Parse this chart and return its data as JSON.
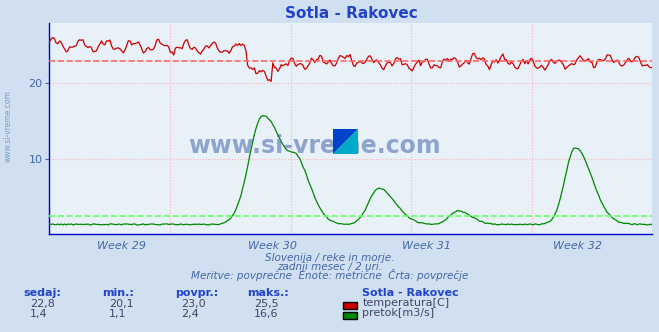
{
  "title": "Sotla - Rakovec",
  "background_color": "#d0e0f0",
  "plot_background": "#e8f0f8",
  "grid_color": "#ffb0b0",
  "x_labels": [
    "Week 29",
    "Week 30",
    "Week 31",
    "Week 32"
  ],
  "y_ticks": [
    10,
    20
  ],
  "ylim_min": 0,
  "ylim_max": 28,
  "temp_avg": 23.0,
  "flow_avg": 2.4,
  "subtitle1": "Slovenija / reke in morje.",
  "subtitle2": "zadnji mesec / 2 uri.",
  "subtitle3": "Meritve: povprečne  Enote: metrične  Črta: povprečje",
  "legend_title": "Sotla - Rakovec",
  "legend_temp": "temperatura[C]",
  "legend_flow": "pretok[m3/s]",
  "stats_headers": [
    "sedaj:",
    "min.:",
    "povpr.:",
    "maks.:"
  ],
  "stats_temp": [
    "22,8",
    "20,1",
    "23,0",
    "25,5"
  ],
  "stats_flow": [
    "1,4",
    "1,1",
    "2,4",
    "16,6"
  ],
  "temp_color": "#cc0000",
  "flow_color": "#008800",
  "avg_line_color_red": "#ff6666",
  "avg_line_color_green": "#66ff66",
  "watermark_text": "www.si-vreme.com",
  "watermark_color": "#4466aa",
  "sidebar_text": "www.si-vreme.com",
  "sidebar_color": "#6688bb",
  "n_points": 360,
  "blue_spine_color": "#0000cc",
  "axis_label_color": "#4466aa",
  "stats_header_color": "#2244cc",
  "stats_value_color": "#444466"
}
